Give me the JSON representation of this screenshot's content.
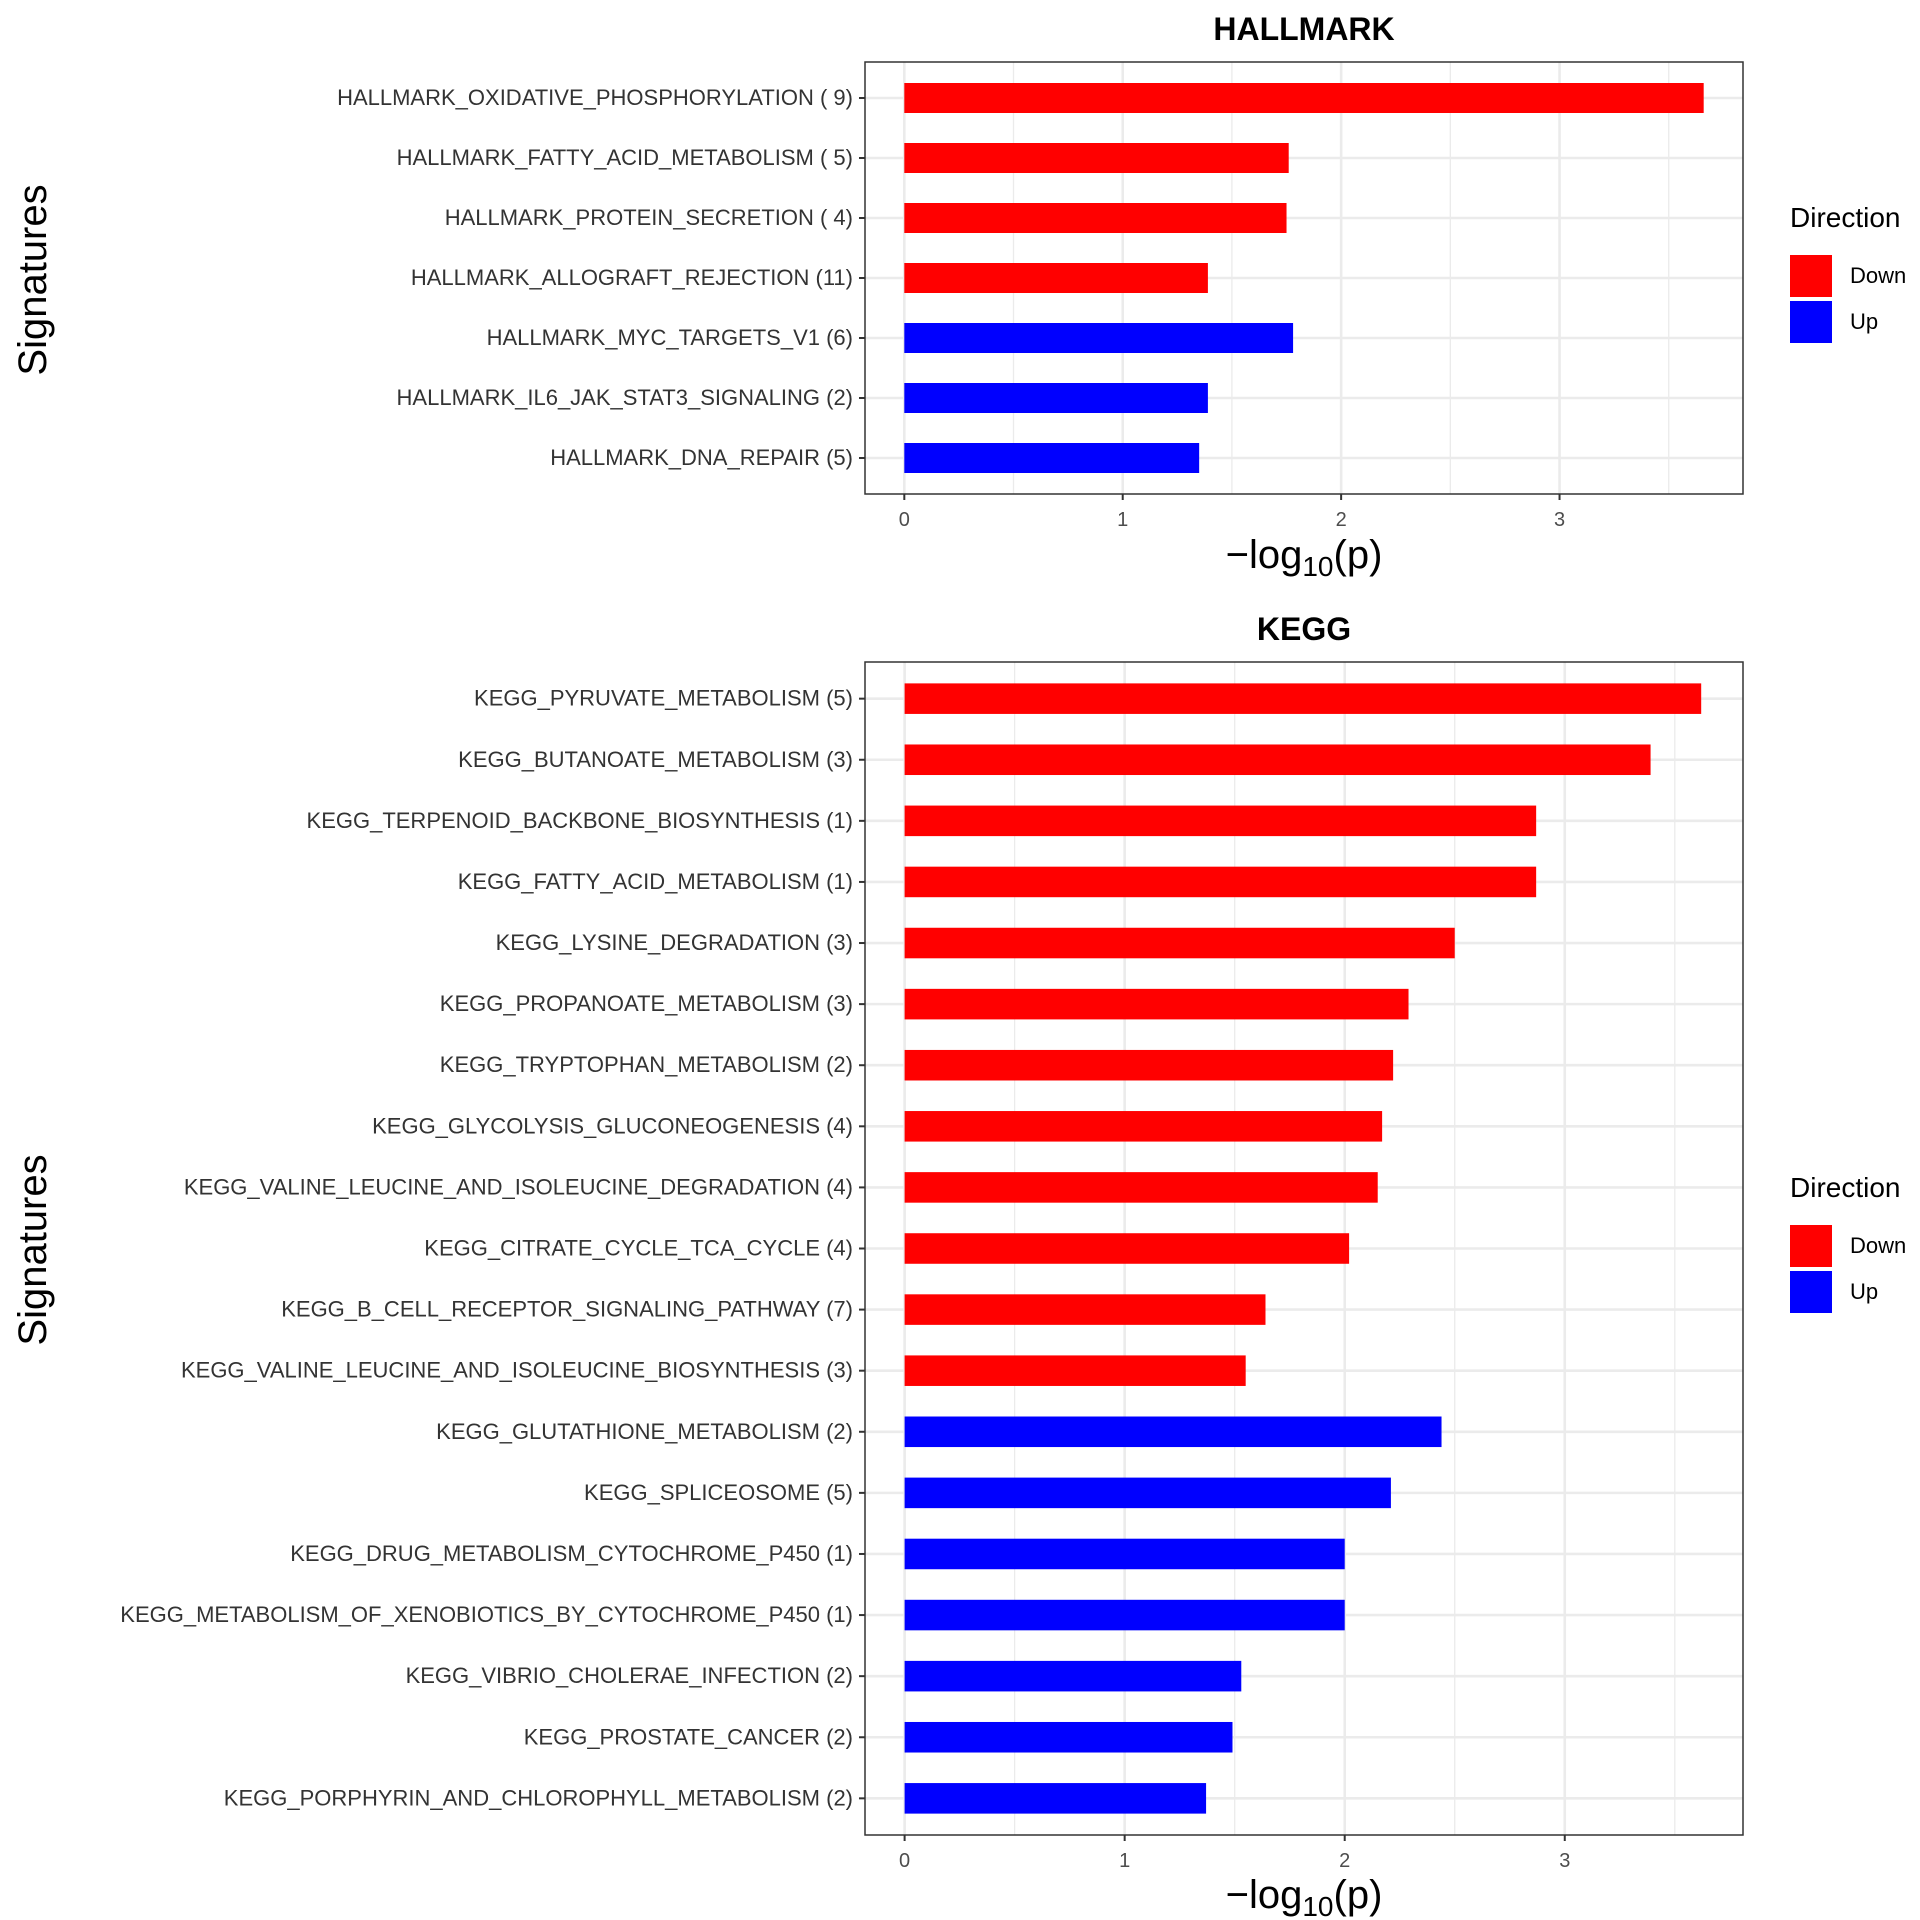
{
  "chart_data": [
    {
      "type": "bar",
      "orientation": "horizontal",
      "title": "HALLMARK",
      "xlabel": "-log10(p)",
      "ylabel": "Signatures",
      "xlim": [
        -0.18,
        3.84
      ],
      "xticks": [
        0,
        1,
        2,
        3
      ],
      "grid": true,
      "legend": {
        "title": "Direction",
        "position": "right",
        "entries": [
          {
            "label": "Down",
            "color": "#FF0000"
          },
          {
            "label": "Up",
            "color": "#0000FF"
          }
        ]
      },
      "categories": [
        "HALLMARK_OXIDATIVE_PHOSPHORYLATION ( 9)",
        "HALLMARK_FATTY_ACID_METABOLISM ( 5)",
        "HALLMARK_PROTEIN_SECRETION ( 4)",
        "HALLMARK_ALLOGRAFT_REJECTION (11)",
        "HALLMARK_MYC_TARGETS_V1 (6)",
        "HALLMARK_IL6_JAK_STAT3_SIGNALING (2)",
        "HALLMARK_DNA_REPAIR (5)"
      ],
      "values": [
        3.66,
        1.76,
        1.75,
        1.39,
        1.78,
        1.39,
        1.35
      ],
      "direction": [
        "Down",
        "Down",
        "Down",
        "Down",
        "Up",
        "Up",
        "Up"
      ]
    },
    {
      "type": "bar",
      "orientation": "horizontal",
      "title": "KEGG",
      "xlabel": "-log10(p)",
      "ylabel": "Signatures",
      "xlim": [
        -0.18,
        3.81
      ],
      "xticks": [
        0,
        1,
        2,
        3
      ],
      "grid": true,
      "legend": {
        "title": "Direction",
        "position": "right",
        "entries": [
          {
            "label": "Down",
            "color": "#FF0000"
          },
          {
            "label": "Up",
            "color": "#0000FF"
          }
        ]
      },
      "categories": [
        "KEGG_PYRUVATE_METABOLISM (5)",
        "KEGG_BUTANOATE_METABOLISM (3)",
        "KEGG_TERPENOID_BACKBONE_BIOSYNTHESIS (1)",
        "KEGG_FATTY_ACID_METABOLISM (1)",
        "KEGG_LYSINE_DEGRADATION (3)",
        "KEGG_PROPANOATE_METABOLISM (3)",
        "KEGG_TRYPTOPHAN_METABOLISM (2)",
        "KEGG_GLYCOLYSIS_GLUCONEOGENESIS (4)",
        "KEGG_VALINE_LEUCINE_AND_ISOLEUCINE_DEGRADATION (4)",
        "KEGG_CITRATE_CYCLE_TCA_CYCLE (4)",
        "KEGG_B_CELL_RECEPTOR_SIGNALING_PATHWAY (7)",
        "KEGG_VALINE_LEUCINE_AND_ISOLEUCINE_BIOSYNTHESIS (3)",
        "KEGG_GLUTATHIONE_METABOLISM (2)",
        "KEGG_SPLICEOSOME (5)",
        "KEGG_DRUG_METABOLISM_CYTOCHROME_P450 (1)",
        "KEGG_METABOLISM_OF_XENOBIOTICS_BY_CYTOCHROME_P450 (1)",
        "KEGG_VIBRIO_CHOLERAE_INFECTION (2)",
        "KEGG_PROSTATE_CANCER (2)",
        "KEGG_PORPHYRIN_AND_CHLOROPHYLL_METABOLISM (2)"
      ],
      "values": [
        3.62,
        3.39,
        2.87,
        2.87,
        2.5,
        2.29,
        2.22,
        2.17,
        2.15,
        2.02,
        1.64,
        1.55,
        2.44,
        2.21,
        2.0,
        2.0,
        1.53,
        1.49,
        1.37
      ],
      "direction": [
        "Down",
        "Down",
        "Down",
        "Down",
        "Down",
        "Down",
        "Down",
        "Down",
        "Down",
        "Down",
        "Down",
        "Down",
        "Up",
        "Up",
        "Up",
        "Up",
        "Up",
        "Up",
        "Up"
      ]
    }
  ],
  "colors": {
    "Down": "#FF0000",
    "Up": "#0000FF",
    "grid": "#EBEBEB",
    "panel_border": "#333333"
  }
}
